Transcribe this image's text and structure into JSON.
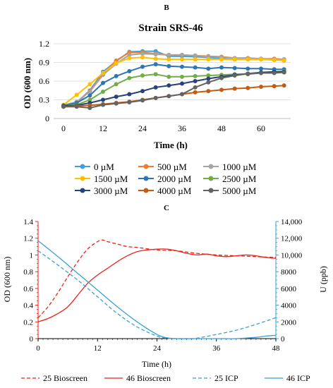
{
  "panel_b": {
    "panel_label": "B",
    "chart_data": {
      "type": "line",
      "title": "Strain SRS-46",
      "xlabel": "Time (h)",
      "ylabel": "OD (600 nm)",
      "xlim": [
        -3,
        69
      ],
      "ylim": [
        0,
        1.2
      ],
      "xticks": [
        "0",
        "12",
        "24",
        "36",
        "48",
        "60"
      ],
      "xtick_values": [
        0,
        12,
        24,
        36,
        48,
        60
      ],
      "yticks": [
        "0",
        "0.3",
        "0.6",
        "0.9",
        "1.2"
      ],
      "ytick_values": [
        0,
        0.3,
        0.6,
        0.9,
        1.2
      ],
      "grid": "horizontal",
      "legend_position": "bottom",
      "x": [
        0,
        4,
        8,
        12,
        16,
        20,
        24,
        28,
        32,
        36,
        40,
        44,
        48,
        52,
        56,
        60,
        64,
        67
      ],
      "series": [
        {
          "name": "0 µM",
          "color": "#3FA0D8",
          "values": [
            0.21,
            0.26,
            0.45,
            0.75,
            0.92,
            1.07,
            1.08,
            1.08,
            1.0,
            1.0,
            0.99,
            0.98,
            0.96,
            0.95,
            0.95,
            0.95,
            0.94,
            0.93
          ]
        },
        {
          "name": "500 µM",
          "color": "#ED7D31",
          "values": [
            0.21,
            0.25,
            0.44,
            0.72,
            0.93,
            1.06,
            1.06,
            1.04,
            1.02,
            1.02,
            1.01,
            1.0,
            0.99,
            0.97,
            0.97,
            0.96,
            0.96,
            0.95
          ]
        },
        {
          "name": "1000 µM",
          "color": "#A5A5A5",
          "values": [
            0.21,
            0.27,
            0.43,
            0.7,
            0.88,
            1.02,
            1.04,
            1.03,
            1.02,
            1.02,
            1.01,
            0.99,
            0.98,
            0.97,
            0.96,
            0.96,
            0.95,
            0.95
          ]
        },
        {
          "name": "1500 µM",
          "color": "#FFC000",
          "values": [
            0.22,
            0.38,
            0.55,
            0.73,
            0.89,
            0.97,
            0.98,
            0.96,
            0.95,
            0.95,
            0.95,
            0.95,
            0.95,
            0.95,
            0.95,
            0.95,
            0.94,
            0.93
          ]
        },
        {
          "name": "2000 µM",
          "color": "#2E75B6",
          "values": [
            0.21,
            0.25,
            0.37,
            0.57,
            0.68,
            0.76,
            0.83,
            0.87,
            0.84,
            0.83,
            0.82,
            0.8,
            0.82,
            0.81,
            0.8,
            0.8,
            0.79,
            0.79
          ]
        },
        {
          "name": "2500 µM",
          "color": "#70AD47",
          "values": [
            0.2,
            0.22,
            0.3,
            0.43,
            0.55,
            0.65,
            0.69,
            0.71,
            0.67,
            0.67,
            0.68,
            0.69,
            0.7,
            0.71,
            0.71,
            0.73,
            0.75,
            0.76
          ]
        },
        {
          "name": "3000 µM",
          "color": "#264478",
          "values": [
            0.2,
            0.21,
            0.25,
            0.3,
            0.35,
            0.39,
            0.44,
            0.5,
            0.53,
            0.56,
            0.6,
            0.64,
            0.67,
            0.7,
            0.72,
            0.74,
            0.75,
            0.75
          ]
        },
        {
          "name": "4000 µM",
          "color": "#C55A11",
          "values": [
            0.19,
            0.2,
            0.21,
            0.23,
            0.25,
            0.27,
            0.3,
            0.33,
            0.36,
            0.39,
            0.42,
            0.44,
            0.46,
            0.48,
            0.49,
            0.51,
            0.52,
            0.53
          ]
        },
        {
          "name": "5000 µM",
          "color": "#636363",
          "values": [
            0.19,
            0.19,
            0.17,
            0.22,
            0.24,
            0.26,
            0.29,
            0.33,
            0.36,
            0.39,
            0.5,
            0.58,
            0.65,
            0.69,
            0.72,
            0.73,
            0.73,
            0.74
          ]
        }
      ]
    }
  },
  "panel_c": {
    "panel_label": "C",
    "chart_data": {
      "type": "line",
      "xlabel": "Time (h)",
      "ylabel_left": "OD (600 nm)",
      "ylabel_right": "U (ppb)",
      "xlim": [
        0,
        48
      ],
      "ylim_left": [
        0,
        1.4
      ],
      "ylim_right": [
        0,
        14000
      ],
      "xticks": [
        "0",
        "12",
        "24",
        "36",
        "48"
      ],
      "xtick_values": [
        0,
        12,
        24,
        36,
        48
      ],
      "yticks_left": [
        "0",
        "0.2",
        "0.4",
        "0.6",
        "0.8",
        "1",
        "1.2",
        "1.4"
      ],
      "ytick_values_left": [
        0,
        0.2,
        0.4,
        0.6,
        0.8,
        1.0,
        1.2,
        1.4
      ],
      "yticks_right": [
        "0",
        "2000",
        "4000",
        "6000",
        "8000",
        "10,000",
        "12,000",
        "14,000"
      ],
      "ytick_values_right": [
        0,
        2000,
        4000,
        6000,
        8000,
        10000,
        12000,
        14000
      ],
      "grid": "none",
      "legend_position": "bottom",
      "series": [
        {
          "name": "25 Bioscreen",
          "axis": "left",
          "color": "#E8231C",
          "dash": "5,3",
          "x": [
            0,
            2,
            4,
            6,
            8,
            10,
            12,
            13,
            14,
            16,
            18,
            20,
            24,
            28,
            32,
            36,
            40,
            44,
            48
          ],
          "values": [
            0.25,
            0.38,
            0.55,
            0.74,
            0.92,
            1.07,
            1.16,
            1.18,
            1.16,
            1.13,
            1.1,
            1.09,
            1.06,
            1.05,
            1.02,
            1.0,
            0.99,
            0.98,
            0.97
          ]
        },
        {
          "name": "46 Bioscreen",
          "axis": "left",
          "color": "#E8231C",
          "dash": "",
          "x": [
            0,
            2,
            4,
            6,
            8,
            10,
            12,
            14,
            16,
            18,
            20,
            22,
            24,
            26,
            28,
            30,
            32,
            34,
            36,
            38,
            40,
            42,
            44,
            46,
            48
          ],
          "values": [
            0.2,
            0.24,
            0.3,
            0.38,
            0.52,
            0.66,
            0.76,
            0.84,
            0.92,
            0.99,
            1.04,
            1.06,
            1.07,
            1.07,
            1.05,
            1.02,
            1.0,
            1.01,
            0.99,
            0.98,
            0.99,
            1.0,
            0.99,
            0.97,
            0.96
          ]
        },
        {
          "name": "25 ICP",
          "axis": "right",
          "color": "#3A9FD6",
          "dash": "5,3",
          "x": [
            0,
            4,
            8,
            12,
            16,
            20,
            24,
            26,
            28,
            30,
            32,
            36,
            40,
            44,
            48
          ],
          "values": [
            10500,
            8800,
            7000,
            5000,
            3000,
            1400,
            300,
            50,
            0,
            0,
            50,
            500,
            1000,
            1700,
            2500
          ]
        },
        {
          "name": "46 ICP",
          "axis": "right",
          "color": "#3A9FD6",
          "dash": "",
          "x": [
            0,
            4,
            8,
            12,
            16,
            20,
            24,
            26,
            28,
            32,
            36,
            40,
            44,
            46,
            48
          ],
          "values": [
            11700,
            9800,
            7800,
            5800,
            3800,
            2000,
            500,
            100,
            0,
            0,
            0,
            0,
            150,
            300,
            400
          ]
        }
      ]
    }
  }
}
